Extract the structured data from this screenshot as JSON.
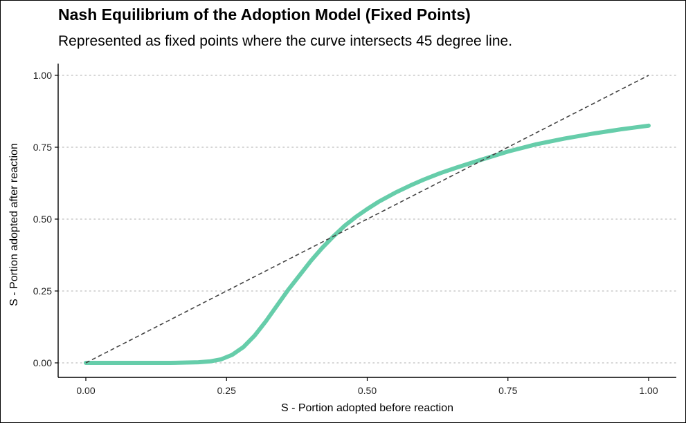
{
  "chart_data": {
    "type": "line",
    "title": "Nash Equilibrium of the Adoption Model (Fixed Points)",
    "subtitle": "Represented as fixed points where the curve intersects 45 degree line.",
    "xlabel": "S - Portion adopted before reaction",
    "ylabel": "S - Portion adopted after reaction",
    "xlim": [
      0,
      1
    ],
    "ylim": [
      0,
      1
    ],
    "x_ticks": [
      "0.00",
      "0.25",
      "0.50",
      "0.75",
      "1.00"
    ],
    "y_ticks": [
      "0.00",
      "0.25",
      "0.50",
      "0.75",
      "1.00"
    ],
    "grid": "horizontal dotted",
    "series": [
      {
        "kind": "curve",
        "color": "#66cdaa",
        "x": [
          0.0,
          0.05,
          0.1,
          0.15,
          0.2,
          0.22,
          0.24,
          0.26,
          0.28,
          0.3,
          0.32,
          0.34,
          0.36,
          0.38,
          0.4,
          0.42,
          0.44,
          0.46,
          0.48,
          0.5,
          0.52,
          0.55,
          0.58,
          0.6,
          0.63,
          0.66,
          0.7,
          0.75,
          0.8,
          0.85,
          0.9,
          0.95,
          1.0
        ],
        "y": [
          0.0,
          0.0,
          0.0,
          0.0,
          0.002,
          0.005,
          0.012,
          0.028,
          0.055,
          0.095,
          0.145,
          0.2,
          0.255,
          0.305,
          0.355,
          0.4,
          0.44,
          0.477,
          0.508,
          0.535,
          0.56,
          0.592,
          0.62,
          0.637,
          0.66,
          0.68,
          0.705,
          0.735,
          0.76,
          0.78,
          0.797,
          0.812,
          0.825
        ]
      },
      {
        "kind": "reference-45-degree",
        "color": "#444444",
        "dash": "dashed",
        "x": [
          0,
          1
        ],
        "y": [
          0,
          1
        ]
      }
    ]
  }
}
